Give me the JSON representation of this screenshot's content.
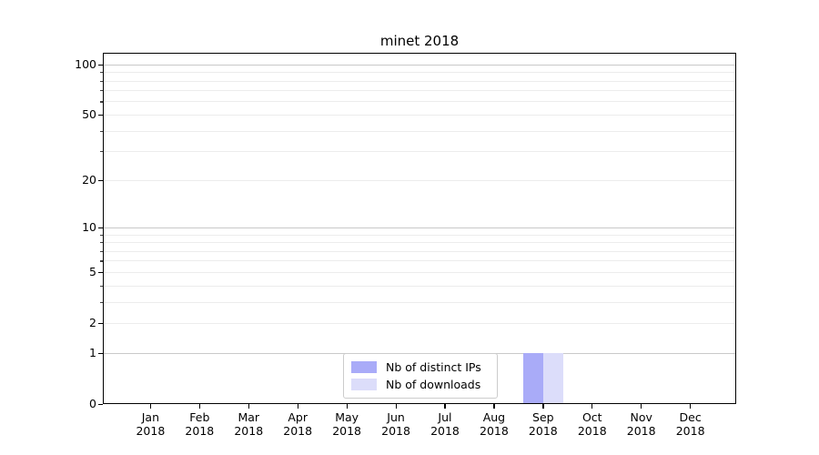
{
  "figure": {
    "background": "#ffffff"
  },
  "chart_data": {
    "type": "bar",
    "title": "minet 2018",
    "xlabel": "",
    "ylabel": "",
    "categories": [
      "Jan",
      "Feb",
      "Mar",
      "Apr",
      "May",
      "Jun",
      "Jul",
      "Aug",
      "Sep",
      "Oct",
      "Nov",
      "Dec"
    ],
    "category_year": "2018",
    "series": [
      {
        "name": "Nb of distinct IPs",
        "color": "#a9abf8",
        "values": [
          0,
          0,
          0,
          0,
          0,
          0,
          0,
          0,
          1,
          0,
          0,
          0
        ]
      },
      {
        "name": "Nb of downloads",
        "color": "#dcddfa",
        "values": [
          0,
          0,
          0,
          0,
          0,
          0,
          0,
          0,
          1,
          0,
          0,
          0
        ]
      }
    ],
    "yscale": "log1p",
    "ylim": [
      0,
      118
    ],
    "y_ticks": [
      0,
      1,
      2,
      5,
      10,
      20,
      50,
      100
    ],
    "y_minor_ticks": [
      3,
      4,
      6,
      7,
      8,
      9,
      30,
      40,
      60,
      70,
      80,
      90
    ],
    "y_major_gridlines": [
      1,
      10,
      100
    ],
    "grid": true,
    "legend": {
      "location": "lower center"
    },
    "colors": {
      "spine": "#000000",
      "major_grid": "#c9c9c9",
      "minor_grid": "#ececec",
      "text": "#000000"
    }
  }
}
